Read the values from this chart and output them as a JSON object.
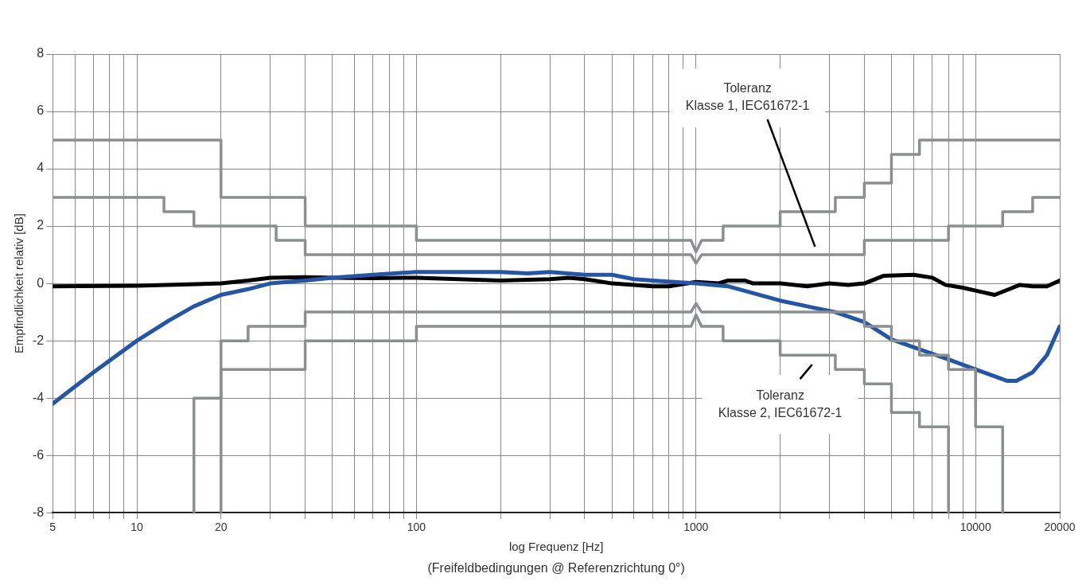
{
  "chart_data": {
    "type": "line",
    "xlabel": "log Frequenz [Hz]",
    "ylabel": "Empfindlichkeit relativ [dB]",
    "log": "x",
    "xlim": [
      5,
      20000
    ],
    "ylim": [
      -8,
      8
    ],
    "xticks": [
      5,
      {
        "value": 6,
        "label": null
      },
      {
        "value": 7,
        "label": null
      },
      {
        "value": 8,
        "label": null
      },
      {
        "value": 9,
        "label": null
      },
      10,
      20,
      {
        "value": 30,
        "label": null
      },
      {
        "value": 40,
        "label": null
      },
      {
        "value": 50,
        "label": null
      },
      {
        "value": 60,
        "label": null
      },
      {
        "value": 70,
        "label": null
      },
      {
        "value": 80,
        "label": null
      },
      {
        "value": 90,
        "label": null
      },
      100,
      {
        "value": 200,
        "label": null
      },
      {
        "value": 300,
        "label": null
      },
      {
        "value": 400,
        "label": null
      },
      {
        "value": 500,
        "label": null
      },
      {
        "value": 600,
        "label": null
      },
      {
        "value": 700,
        "label": null
      },
      {
        "value": 800,
        "label": null
      },
      {
        "value": 900,
        "label": null
      },
      1000,
      {
        "value": 2000,
        "label": null
      },
      {
        "value": 3000,
        "label": null
      },
      {
        "value": 4000,
        "label": null
      },
      {
        "value": 5000,
        "label": null
      },
      {
        "value": 6000,
        "label": null
      },
      {
        "value": 7000,
        "label": null
      },
      {
        "value": 8000,
        "label": null
      },
      {
        "value": 9000,
        "label": null
      },
      10000,
      20000
    ],
    "yticks": [
      -8,
      -6,
      -4,
      -2,
      0,
      2,
      4,
      6,
      8
    ],
    "grid": true,
    "legend": false,
    "marker": "none",
    "line_style": "solid",
    "series": [
      {
        "color": "#8c8f90",
        "x": [
          5,
          20,
          20,
          40,
          40,
          100,
          100,
          960,
          1000,
          1047,
          1250,
          1250,
          2000,
          2000,
          3150,
          3150,
          4000,
          4000,
          5000,
          5000,
          6300,
          6300,
          20000
        ],
        "values": [
          5,
          5,
          3,
          3,
          2,
          2,
          1.5,
          1.5,
          1.1,
          1.5,
          1.5,
          2,
          2,
          2.5,
          2.5,
          3,
          3,
          3.5,
          3.5,
          4.5,
          4.5,
          5,
          5
        ]
      },
      {
        "color": "#8c8f90",
        "x": [
          5,
          12.5,
          12.5,
          16,
          16,
          31.5,
          31.5,
          40,
          40,
          960,
          1000,
          1047,
          4000,
          4000,
          8000,
          8000,
          12500,
          12500,
          16000,
          16000,
          20000
        ],
        "values": [
          3,
          3,
          2.5,
          2.5,
          2,
          2,
          1.5,
          1.5,
          1,
          1,
          0.7,
          1,
          1,
          1.5,
          1.5,
          2,
          2,
          2.5,
          2.5,
          3,
          3
        ]
      },
      {
        "color": "#8c8f90",
        "x": [
          16,
          16,
          20,
          20,
          25,
          25,
          40,
          40,
          960,
          1000,
          1047,
          4000,
          4000,
          5000,
          5000,
          6300,
          6300,
          8000,
          8000,
          10000,
          10000,
          12500,
          12500
        ],
        "values": [
          -8,
          -4,
          -4,
          -2,
          -2,
          -1.5,
          -1.5,
          -1,
          -1,
          -0.7,
          -1,
          -1,
          -1.5,
          -1.5,
          -2,
          -2,
          -2.5,
          -2.5,
          -3,
          -3,
          -5,
          -5,
          -8
        ]
      },
      {
        "color": "#8c8f90",
        "x": [
          20,
          20,
          40,
          40,
          100,
          100,
          960,
          1000,
          1047,
          1250,
          1250,
          2000,
          2000,
          3150,
          3150,
          4000,
          4000,
          5000,
          5000,
          6300,
          6300,
          8000,
          8000
        ],
        "values": [
          -8,
          -3,
          -3,
          -2,
          -2,
          -1.5,
          -1.5,
          -1.1,
          -1.5,
          -1.5,
          -2,
          -2,
          -2.5,
          -2.5,
          -3,
          -3,
          -3.5,
          -3.5,
          -4.5,
          -4.5,
          -5,
          -5,
          -8
        ]
      },
      {
        "color": "#2356a8",
        "x": [
          5,
          7,
          10,
          13,
          16,
          20,
          25,
          30,
          40,
          50,
          70,
          100,
          200,
          250,
          300,
          400,
          500,
          600,
          700,
          1000,
          1300,
          2000,
          2500,
          3150,
          4000,
          5000,
          6300,
          8000,
          10000,
          13000,
          14000,
          16000,
          18000,
          20000
        ],
        "values": [
          -4.2,
          -3.1,
          -2,
          -1.3,
          -0.8,
          -0.4,
          -0.2,
          0,
          0.1,
          0.2,
          0.3,
          0.4,
          0.4,
          0.35,
          0.4,
          0.3,
          0.3,
          0.15,
          0.1,
          0,
          -0.1,
          -0.6,
          -0.8,
          -1,
          -1.35,
          -1.95,
          -2.3,
          -2.65,
          -3,
          -3.4,
          -3.4,
          -3.1,
          -2.5,
          -1.5
        ]
      },
      {
        "color": "#000000",
        "x": [
          5,
          10,
          20,
          25,
          30,
          40,
          50,
          70,
          100,
          200,
          300,
          350,
          400,
          500,
          600,
          700,
          800,
          1000,
          1200,
          1300,
          1500,
          1600,
          2000,
          2500,
          3000,
          3500,
          4000,
          4700,
          6000,
          7000,
          7800,
          9000,
          10000,
          11700,
          14400,
          16000,
          18000,
          20000
        ],
        "values": [
          -0.1,
          -0.08,
          0,
          0.1,
          0.2,
          0.22,
          0.2,
          0.18,
          0.2,
          0.1,
          0.15,
          0.2,
          0.15,
          0,
          -0.05,
          -0.1,
          -0.1,
          0.05,
          0,
          0.1,
          0.1,
          0,
          0,
          -0.1,
          0,
          -0.05,
          0,
          0.27,
          0.3,
          0.2,
          -0.05,
          -0.15,
          -0.25,
          -0.4,
          -0.05,
          -0.1,
          -0.1,
          0.1
        ]
      }
    ],
    "annotations": [
      "Toleranz\nKlasse 1, IEC61672-1",
      {
        "text": "Toleranz\nKlasse 2, IEC61672-1",
        "x": 2600,
        "y": -2.5
      },
      "(Freifeldbedingungen @ Referenzrichtung 0°)"
    ]
  }
}
